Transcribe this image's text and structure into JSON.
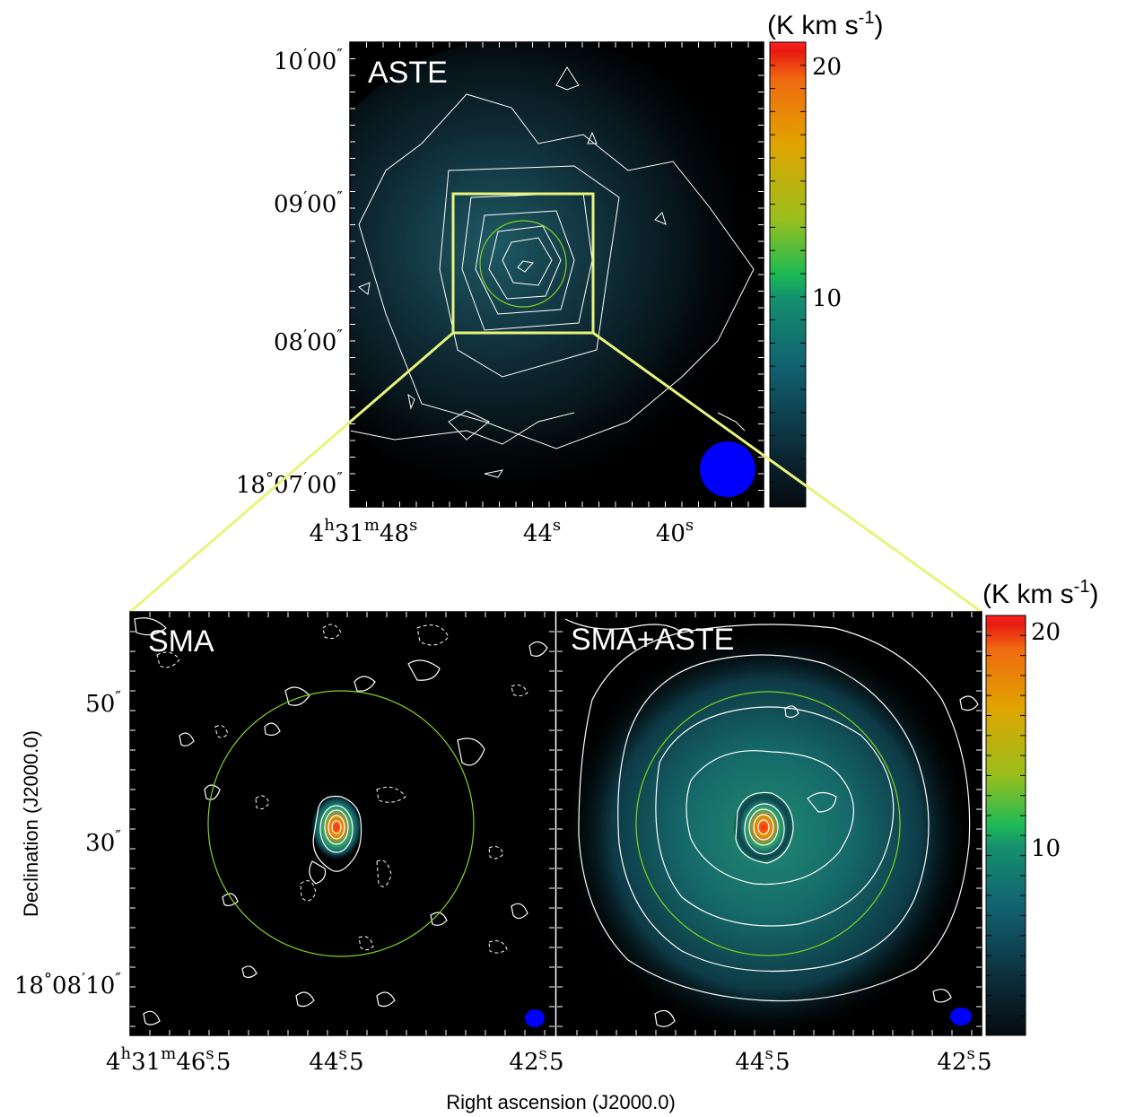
{
  "colors": {
    "background": "#ffffff",
    "map_background": "#000000",
    "contour": "#ffffff",
    "fov_circle": "#7fd320",
    "zoom_box": "#e8f47a",
    "beam": "#0000ff",
    "colormap": [
      "#050a10",
      "#0b2a36",
      "#116070",
      "#14906e",
      "#1cba55",
      "#9abf1c",
      "#e0a400",
      "#f06a10",
      "#e81a12"
    ]
  },
  "top_panel": {
    "label": "ASTE",
    "colorbar_unit_main": "(K km s",
    "colorbar_unit_sup": "-1",
    "colorbar_unit_close": ")",
    "colorbar_ticks": [
      "20",
      "10"
    ],
    "dec_ticks": [
      {
        "deg": "",
        "min": "10",
        "sec": "00"
      },
      {
        "deg": "",
        "min": "09",
        "sec": "00"
      },
      {
        "deg": "",
        "min": "08",
        "sec": "00"
      },
      {
        "deg": "18",
        "min": "07",
        "sec": "00"
      }
    ],
    "ra_ticks": [
      {
        "h": "4",
        "m": "31",
        "s": "48"
      },
      {
        "h": "",
        "m": "",
        "s": "44"
      },
      {
        "h": "",
        "m": "",
        "s": "40"
      }
    ]
  },
  "bottom_left_panel": {
    "label": "SMA"
  },
  "bottom_right_panel": {
    "label": "SMA+ASTE",
    "colorbar_unit_main": "(K km s",
    "colorbar_unit_sup": "-1",
    "colorbar_unit_close": ")",
    "colorbar_ticks": [
      "20",
      "10"
    ]
  },
  "bottom_axes": {
    "dec_ticks": [
      {
        "deg": "",
        "min": "",
        "sec": "50"
      },
      {
        "deg": "",
        "min": "",
        "sec": "30"
      },
      {
        "deg": "18",
        "min": "08",
        "sec": "10"
      }
    ],
    "ra_ticks": [
      {
        "h": "4",
        "m": "31",
        "s": "46",
        "frac": "5"
      },
      {
        "h": "",
        "m": "",
        "s": "44",
        "frac": "5"
      },
      {
        "h": "",
        "m": "",
        "s": "42",
        "frac": "5"
      },
      {
        "h": "",
        "m": "",
        "s": "42",
        "frac": "5"
      },
      {
        "h": "",
        "m": "",
        "s": "44",
        "frac": "5"
      },
      {
        "h": "",
        "m": "",
        "s": "42",
        "frac": "5"
      }
    ],
    "xlabel": "Right ascension (J2000.0)",
    "ylabel": "Declination (J2000.0)"
  },
  "chart_data": [
    {
      "type": "heatmap",
      "title": "ASTE",
      "colorbar_range": [
        0,
        22
      ],
      "colorbar_unit": "K km s-1",
      "peak_position": {
        "ra": "4h31m44.5s",
        "dec": "18d08m33s"
      },
      "peak_value": 6,
      "zoom_box": true,
      "beam_marker": true
    },
    {
      "type": "heatmap",
      "title": "SMA",
      "peak_position": {
        "ra": "4h31m44.5s",
        "dec": "18d08m31s"
      },
      "peak_value": 22,
      "fov_circle": true,
      "beam_marker": true,
      "negative_contours": "dashed"
    },
    {
      "type": "heatmap",
      "title": "SMA+ASTE",
      "colorbar_range": [
        0,
        22
      ],
      "colorbar_unit": "K km s-1",
      "peak_position": {
        "ra": "4h31m44.5s",
        "dec": "18d08m31s"
      },
      "peak_value": 22,
      "fov_circle": true,
      "beam_marker": true
    }
  ]
}
